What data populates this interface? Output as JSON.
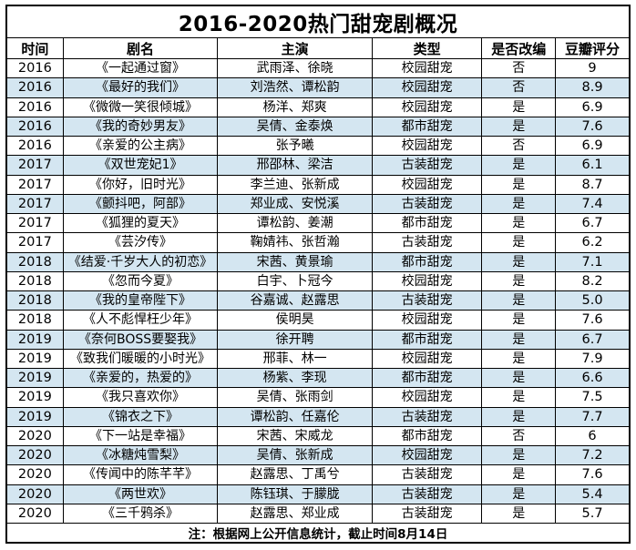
{
  "chart_data": {
    "type": "table",
    "title": "2016-2020热门甜宠剧概况",
    "columns": [
      "时间",
      "剧名",
      "主演",
      "类型",
      "是否改编",
      "豆瓣评分"
    ],
    "rows": [
      {
        "year": "2016",
        "name": "《一起通过窗》",
        "cast": "武雨泽、徐晓",
        "genre": "校园甜宠",
        "adapted": "否",
        "rating": "9",
        "banded": false
      },
      {
        "year": "2016",
        "name": "《最好的我们》",
        "cast": "刘浩然、谭松韵",
        "genre": "校园甜宠",
        "adapted": "否",
        "rating": "8.9",
        "banded": true
      },
      {
        "year": "2016",
        "name": "《微微一笑很倾城》",
        "cast": "杨洋、郑爽",
        "genre": "校园甜宠",
        "adapted": "是",
        "rating": "6.9",
        "banded": false
      },
      {
        "year": "2016",
        "name": "《我的奇妙男友》",
        "cast": "吴倩、金泰焕",
        "genre": "都市甜宠",
        "adapted": "是",
        "rating": "7.6",
        "banded": true
      },
      {
        "year": "2016",
        "name": "《亲爱的公主病》",
        "cast": "张予曦",
        "genre": "校园甜宠",
        "adapted": "否",
        "rating": "6.9",
        "banded": false
      },
      {
        "year": "2017",
        "name": "《双世宠妃1》",
        "cast": "邢邵林、梁洁",
        "genre": "古装甜宠",
        "adapted": "是",
        "rating": "6.1",
        "banded": true
      },
      {
        "year": "2017",
        "name": "《你好，旧时光》",
        "cast": "李兰迪、张新成",
        "genre": "校园甜宠",
        "adapted": "是",
        "rating": "8.7",
        "banded": false
      },
      {
        "year": "2017",
        "name": "《颤抖吧，阿部》",
        "cast": "郑业成、安悦溪",
        "genre": "古装甜宠",
        "adapted": "是",
        "rating": "7.4",
        "banded": true
      },
      {
        "year": "2017",
        "name": "《狐狸的夏天》",
        "cast": "谭松韵、姜潮",
        "genre": "都市甜宠",
        "adapted": "是",
        "rating": "6.7",
        "banded": false
      },
      {
        "year": "2017",
        "name": "《芸汐传》",
        "cast": "鞠婧祎、张哲瀚",
        "genre": "古装甜宠",
        "adapted": "是",
        "rating": "6.2",
        "banded": false
      },
      {
        "year": "2018",
        "name": "《结爱·千岁大人的初恋》",
        "cast": "宋茜、黄景瑜",
        "genre": "都市甜宠",
        "adapted": "是",
        "rating": "7.1",
        "banded": true
      },
      {
        "year": "2018",
        "name": "《忽而今夏》",
        "cast": "白宇、卜冠今",
        "genre": "校园甜宠",
        "adapted": "是",
        "rating": "8.2",
        "banded": false
      },
      {
        "year": "2018",
        "name": "《我的皇帝陛下》",
        "cast": "谷嘉诚、赵露思",
        "genre": "古装甜宠",
        "adapted": "是",
        "rating": "5.0",
        "banded": true
      },
      {
        "year": "2018",
        "name": "《人不彪悍枉少年》",
        "cast": "侯明昊",
        "genre": "校园甜宠",
        "adapted": "是",
        "rating": "7.6",
        "banded": false
      },
      {
        "year": "2019",
        "name": "《奈何BOSS要娶我》",
        "cast": "徐开聘",
        "genre": "都市甜宠",
        "adapted": "是",
        "rating": "6.7",
        "banded": true
      },
      {
        "year": "2019",
        "name": "《致我们暖暖的小时光》",
        "cast": "邢菲、林一",
        "genre": "校园甜宠",
        "adapted": "是",
        "rating": "7.9",
        "banded": false
      },
      {
        "year": "2019",
        "name": "《亲爱的，热爱的》",
        "cast": "杨紫、李现",
        "genre": "都市甜宠",
        "adapted": "是",
        "rating": "6.6",
        "banded": true
      },
      {
        "year": "2019",
        "name": "《我只喜欢你》",
        "cast": "吴倩、张雨剑",
        "genre": "校园甜宠",
        "adapted": "是",
        "rating": "7.5",
        "banded": false
      },
      {
        "year": "2019",
        "name": "《锦衣之下》",
        "cast": "谭松韵、任嘉伦",
        "genre": "古装甜宠",
        "adapted": "是",
        "rating": "7.7",
        "banded": true
      },
      {
        "year": "2020",
        "name": "《下一站是幸福》",
        "cast": "宋茜、宋威龙",
        "genre": "都市甜宠",
        "adapted": "否",
        "rating": "6",
        "banded": false
      },
      {
        "year": "2020",
        "name": "《冰糖炖雪梨》",
        "cast": "吴倩、张新成",
        "genre": "校园甜宠",
        "adapted": "是",
        "rating": "7.2",
        "banded": true
      },
      {
        "year": "2020",
        "name": "《传闻中的陈芊芊》",
        "cast": "赵露思、丁禹兮",
        "genre": "古装甜宠",
        "adapted": "是",
        "rating": "7.6",
        "banded": false
      },
      {
        "year": "2020",
        "name": "《两世欢》",
        "cast": "陈钰琪、于朦胧",
        "genre": "古装甜宠",
        "adapted": "是",
        "rating": "5.4",
        "banded": true
      },
      {
        "year": "2020",
        "name": "《三千鸦杀》",
        "cast": "赵露思、郑业成",
        "genre": "古装甜宠",
        "adapted": "是",
        "rating": "5.7",
        "banded": false
      }
    ],
    "note": "注：根据网上公开信息统计，截止时间8月14日",
    "layout": {
      "band_color": "#d4e6f1",
      "border_color": "#000000",
      "background_color": "#ffffff",
      "legend": "none",
      "grid": "full-borders"
    }
  }
}
